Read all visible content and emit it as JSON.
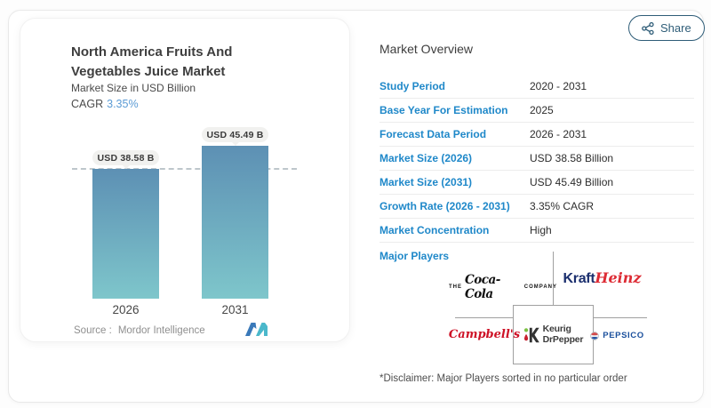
{
  "share": {
    "label": "Share"
  },
  "left_card": {
    "title": "North America Fruits And Vegetables Juice Market",
    "subtitle": "Market Size in USD Billion",
    "cagr_label": "CAGR",
    "cagr_value": "3.35%",
    "source_label": "Source :",
    "source_value": "Mordor Intelligence"
  },
  "chart_data": {
    "type": "bar",
    "categories": [
      "2026",
      "2031"
    ],
    "values": [
      38.58,
      45.49
    ],
    "value_labels": [
      "USD 38.58 B",
      "USD 45.49 B"
    ],
    "title": "North America Fruits And Vegetables Juice Market",
    "xlabel": "",
    "ylabel": "Market Size in USD Billion",
    "ylim": [
      0,
      50
    ],
    "grid": false,
    "legend": "none",
    "baseline_dashed_at_value": 38.58,
    "bar_gradient_top": "#5d90b4",
    "bar_gradient_bottom": "#7ec6cb"
  },
  "overview": {
    "heading": "Market Overview",
    "rows": [
      {
        "label": "Study Period",
        "value": "2020 - 2031"
      },
      {
        "label": "Base Year For Estimation",
        "value": "2025"
      },
      {
        "label": "Forecast Data Period",
        "value": "2026 - 2031"
      },
      {
        "label": "Market Size (2026)",
        "value": "USD 38.58 Billion"
      },
      {
        "label": "Market Size (2031)",
        "value": "USD 45.49 Billion"
      },
      {
        "label": "Growth Rate (2026 - 2031)",
        "value": "3.35% CAGR"
      },
      {
        "label": "Market Concentration",
        "value": "High"
      }
    ],
    "major_players_label": "Major Players",
    "major_players": [
      "The Coca-Cola Company",
      "Kraft Heinz",
      "Campbell's",
      "Keurig Dr Pepper",
      "PepsiCo"
    ],
    "disclaimer": "*Disclaimer: Major Players sorted in no particular order"
  },
  "logos": {
    "coca_cola": {
      "pre": "THE",
      "script": "Coca-Cola",
      "post": "COMPANY"
    },
    "kraft_heinz": {
      "part1": "Kraft",
      "part2": "Heinz"
    },
    "campbells": {
      "text": "Campbell's"
    },
    "keurig": {
      "line1": "Keurig",
      "line2": "DrPepper"
    },
    "pepsico": {
      "text": "PEPSICO"
    }
  },
  "icons": {
    "share": "share-nodes",
    "brand_mark": "mordor-intelligence-mark"
  },
  "colors": {
    "table_label_blue": "#1f88c9",
    "share_outline": "#2f5d78",
    "cagr_value_blue": "#5b9bd5",
    "bar_top": "#5d90b4",
    "bar_bottom": "#7ec6cb",
    "pill_bg": "#f1f1ef",
    "divider_gray": "#a0a0a0"
  }
}
